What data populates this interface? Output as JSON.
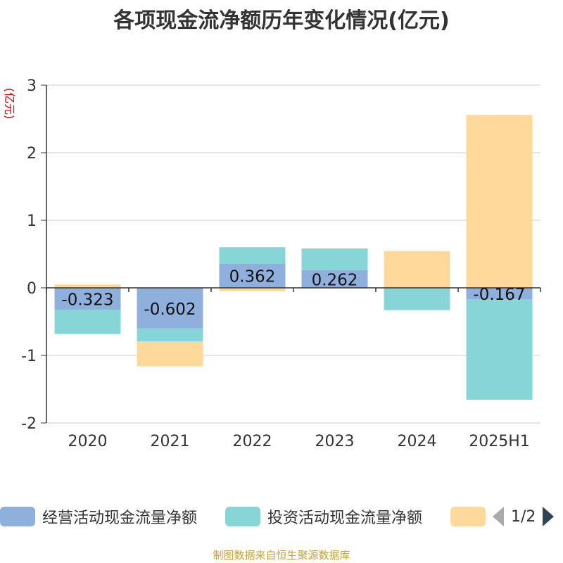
{
  "chart_data": {
    "type": "bar",
    "stacked": true,
    "title": "各项现金流净额历年变化情况(亿元)",
    "ylabel": "(亿元)",
    "xlabel": "",
    "categories": [
      "2020",
      "2021",
      "2022",
      "2023",
      "2024",
      "2025H1"
    ],
    "ylim": [
      -2,
      3
    ],
    "yticks": [
      -2,
      -1,
      0,
      1,
      2,
      3
    ],
    "grid": true,
    "series": [
      {
        "name": "经营活动现金流量净额",
        "color": "#8fb0dc",
        "values": [
          -0.323,
          -0.602,
          0.362,
          0.262,
          0.004,
          -0.167
        ],
        "labels": [
          "-0.323",
          "-0.602",
          "0.362",
          "0.262",
          "",
          "-0.167"
        ]
      },
      {
        "name": "投资活动现金流量净额",
        "color": "#88d5d8",
        "values": [
          -0.36,
          -0.19,
          0.24,
          0.32,
          -0.33,
          -1.49
        ]
      },
      {
        "name": "",
        "color": "#fed999",
        "values": [
          0.05,
          -0.37,
          -0.05,
          -0.01,
          0.54,
          2.56
        ]
      }
    ],
    "legend": {
      "position": "bottom",
      "page": "1/2"
    }
  },
  "source_note": "制图数据来自恒生聚源数据库"
}
